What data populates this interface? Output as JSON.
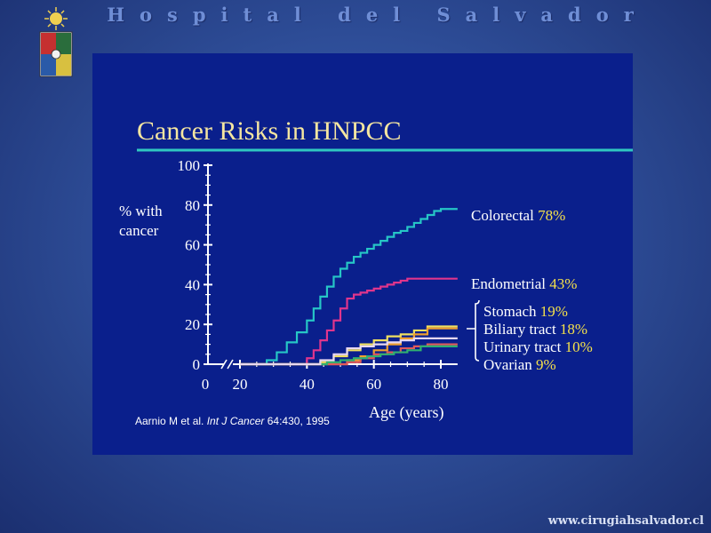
{
  "header": {
    "title": "Hospital del Salvador"
  },
  "footer": {
    "url": "www.cirugiahsalvador.cl"
  },
  "colors": {
    "slide_bg": "#0a1f8c",
    "title_yellow": "#f5e6a0",
    "accent_yellow": "#f4e04a",
    "rule_teal": "#30c8c0"
  },
  "slide": {
    "citation_authors": "Aarnio M et al. ",
    "citation_journal": "Int J Cancer",
    "citation_rest": " 64:430, 1995"
  },
  "chart_data": {
    "type": "line",
    "title": "Cancer Risks in HNPCC",
    "ylabel": "% with cancer",
    "ylabel_lines": [
      "% with",
      "cancer"
    ],
    "xlabel": "Age (years)",
    "ylim": [
      0,
      100
    ],
    "xlim": [
      0,
      85
    ],
    "x_axis_break": true,
    "y_ticks": [
      "0",
      "20",
      "40",
      "60",
      "80",
      "100"
    ],
    "x_ticks": [
      "0",
      "20",
      "40",
      "60",
      "80"
    ],
    "series": [
      {
        "name": "Colorectal",
        "value_label": "78%",
        "color": "#26c6c6",
        "x": [
          20,
          25,
          28,
          31,
          34,
          37,
          40,
          42,
          44,
          46,
          48,
          50,
          52,
          54,
          56,
          58,
          60,
          62,
          64,
          66,
          68,
          70,
          72,
          74,
          76,
          78,
          80,
          85
        ],
        "y": [
          0,
          0,
          2,
          6,
          11,
          16,
          22,
          28,
          34,
          39,
          44,
          48,
          51,
          54,
          56,
          58,
          60,
          62,
          64,
          66,
          67,
          69,
          71,
          73,
          75,
          77,
          78,
          78
        ]
      },
      {
        "name": "Endometrial",
        "value_label": "43%",
        "color": "#e0358c",
        "x": [
          20,
          38,
          40,
          42,
          44,
          46,
          48,
          50,
          52,
          54,
          56,
          58,
          60,
          62,
          64,
          66,
          68,
          70,
          72,
          85
        ],
        "y": [
          0,
          0,
          3,
          7,
          12,
          17,
          22,
          28,
          33,
          35,
          36,
          37,
          38,
          39,
          40,
          41,
          42,
          43,
          43,
          43
        ]
      },
      {
        "name": "Stomach",
        "value_label": "19%",
        "color": "#f0e060",
        "x": [
          20,
          40,
          44,
          48,
          52,
          56,
          60,
          64,
          68,
          72,
          76,
          85
        ],
        "y": [
          0,
          0,
          1,
          4,
          7,
          10,
          12,
          14,
          15,
          17,
          19,
          19
        ]
      },
      {
        "name": "Biliary tract",
        "value_label": "18%",
        "color": "#f0a030",
        "x": [
          20,
          48,
          52,
          56,
          60,
          64,
          68,
          72,
          76,
          85
        ],
        "y": [
          0,
          0,
          2,
          4,
          7,
          10,
          13,
          15,
          18,
          18
        ]
      },
      {
        "name": "Urinary tract",
        "value_label": "10%",
        "color": "#e05a5a",
        "x": [
          20,
          48,
          52,
          56,
          60,
          64,
          68,
          72,
          76,
          85
        ],
        "y": [
          0,
          0,
          1,
          3,
          5,
          6,
          8,
          9,
          10,
          10
        ]
      },
      {
        "name": "Ovarian",
        "value_label": "9%",
        "color": "#30b070",
        "x": [
          20,
          42,
          46,
          50,
          54,
          58,
          62,
          66,
          70,
          74,
          85
        ],
        "y": [
          0,
          0,
          1,
          2,
          3,
          4,
          5,
          6,
          7,
          9,
          9
        ]
      },
      {
        "name": "",
        "value_label": "",
        "color": "#e8d8f0",
        "x": [
          20,
          40,
          44,
          48,
          52,
          56,
          60,
          64,
          68,
          72,
          85
        ],
        "y": [
          0,
          0,
          2,
          5,
          8,
          9,
          10,
          11,
          12,
          13,
          13
        ]
      }
    ]
  }
}
